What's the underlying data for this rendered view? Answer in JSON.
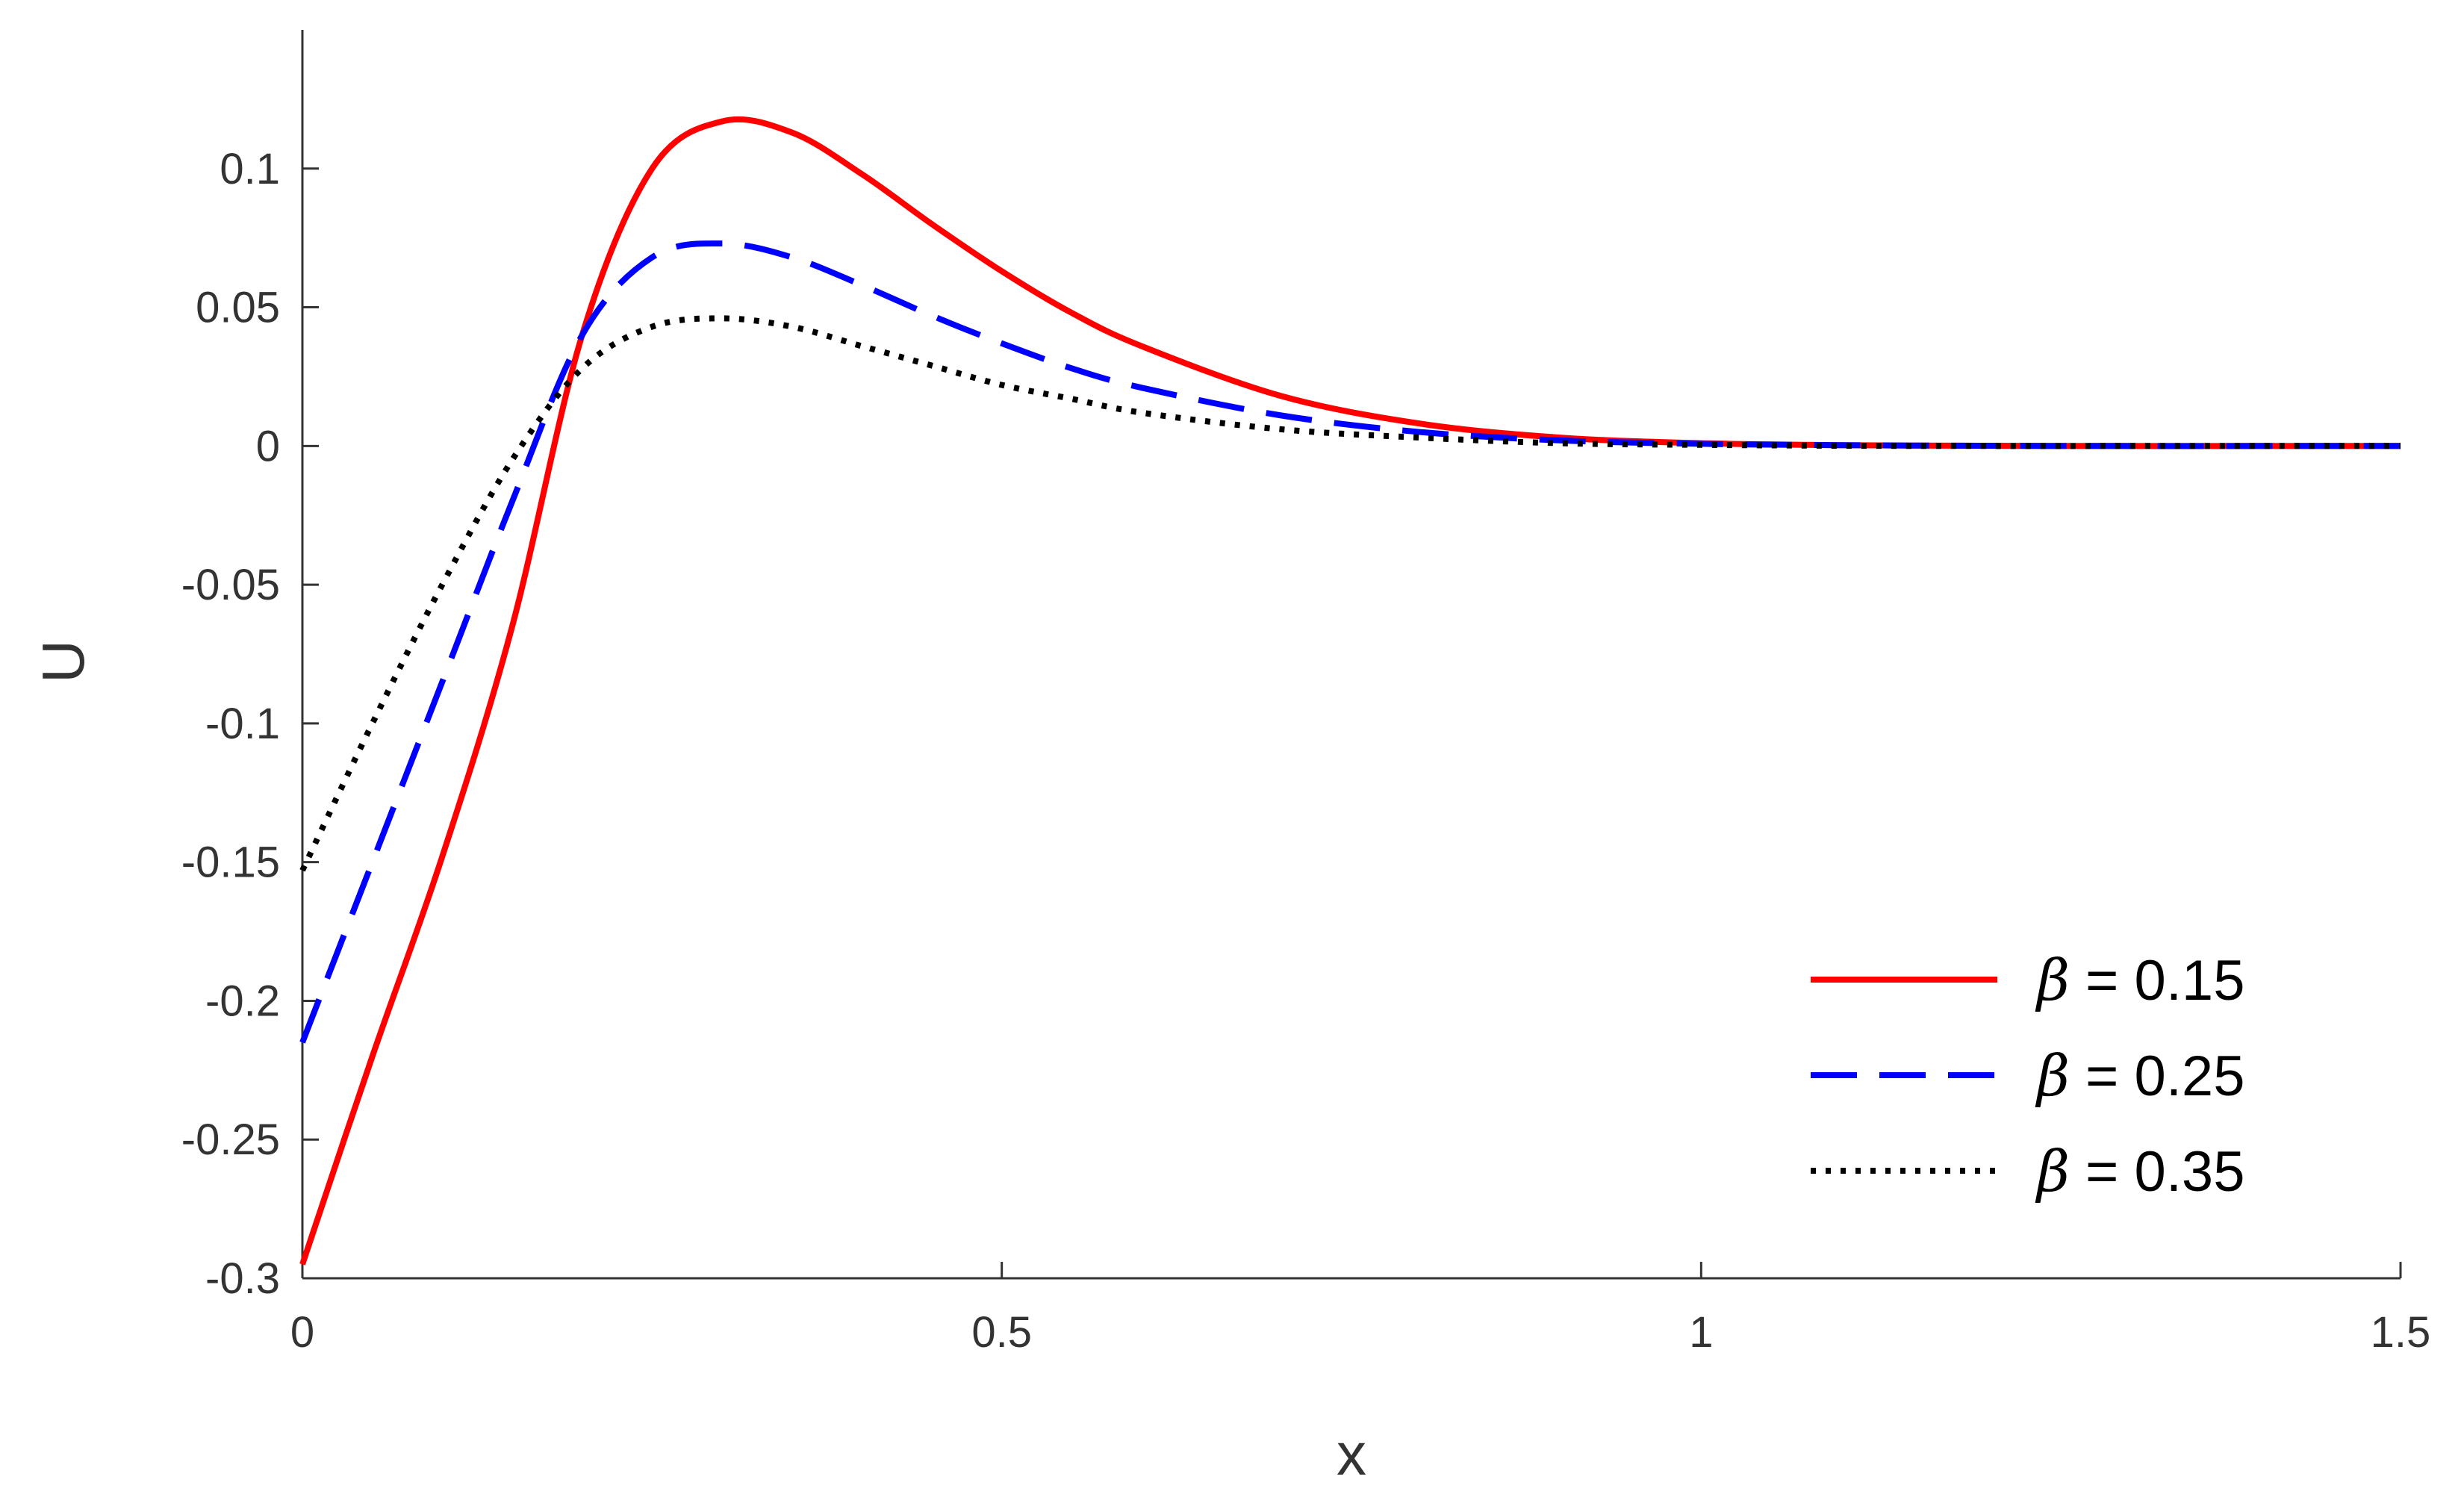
{
  "chart_data": {
    "type": "line",
    "xlabel": "x",
    "ylabel": "U",
    "xlim": [
      0,
      1.5
    ],
    "ylim": [
      -0.3,
      0.15
    ],
    "xticks": [
      {
        "value": 0,
        "label": "0"
      },
      {
        "value": 0.5,
        "label": "0.5"
      },
      {
        "value": 1,
        "label": "1"
      },
      {
        "value": 1.5,
        "label": "1.5"
      }
    ],
    "yticks": [
      {
        "value": 0.1,
        "label": "0.1"
      },
      {
        "value": 0.05,
        "label": "0.05"
      },
      {
        "value": 0,
        "label": "0"
      },
      {
        "value": -0.05,
        "label": "-0.05"
      },
      {
        "value": -0.1,
        "label": "-0.1"
      },
      {
        "value": -0.15,
        "label": "-0.15"
      },
      {
        "value": -0.2,
        "label": "-0.2"
      },
      {
        "value": -0.25,
        "label": "-0.25"
      },
      {
        "value": -0.3,
        "label": "-0.3"
      }
    ],
    "grid": false,
    "legend_position": "bottom-right",
    "series": [
      {
        "name": "β = 0.15",
        "legend_symbol": "β",
        "legend_text": " = 0.15",
        "color": "#ff0000",
        "style": "solid",
        "x": [
          0,
          0.05,
          0.1,
          0.15,
          0.2,
          0.25,
          0.3,
          0.35,
          0.4,
          0.45,
          0.5,
          0.55,
          0.6,
          0.7,
          0.8,
          0.9,
          1.0,
          1.1,
          1.2,
          1.3,
          1.4,
          1.5
        ],
        "y": [
          -0.295,
          -0.22,
          -0.148,
          -0.065,
          0.04,
          0.1,
          0.117,
          0.113,
          0.098,
          0.08,
          0.063,
          0.048,
          0.036,
          0.018,
          0.008,
          0.003,
          0.001,
          0.0003,
          0.0001,
          0,
          0,
          0
        ]
      },
      {
        "name": "β = 0.25",
        "legend_symbol": "β",
        "legend_text": " = 0.25",
        "color": "#0000ff",
        "style": "dashed",
        "x": [
          0,
          0.05,
          0.1,
          0.15,
          0.2,
          0.25,
          0.3,
          0.35,
          0.4,
          0.45,
          0.5,
          0.55,
          0.6,
          0.7,
          0.8,
          0.9,
          1.0,
          1.1,
          1.2,
          1.3,
          1.4,
          1.5
        ],
        "y": [
          -0.215,
          -0.15,
          -0.085,
          -0.02,
          0.04,
          0.068,
          0.073,
          0.068,
          0.058,
          0.047,
          0.037,
          0.028,
          0.021,
          0.011,
          0.005,
          0.002,
          0.0008,
          0.0003,
          0.0001,
          0,
          0,
          0
        ]
      },
      {
        "name": "β = 0.35",
        "legend_symbol": "β",
        "legend_text": " = 0.35",
        "color": "#000000",
        "style": "dotted",
        "x": [
          0,
          0.05,
          0.1,
          0.15,
          0.2,
          0.25,
          0.3,
          0.35,
          0.4,
          0.45,
          0.5,
          0.55,
          0.6,
          0.7,
          0.8,
          0.9,
          1.0,
          1.1,
          1.2,
          1.3,
          1.4,
          1.5
        ],
        "y": [
          -0.153,
          -0.1,
          -0.05,
          -0.005,
          0.028,
          0.043,
          0.046,
          0.043,
          0.036,
          0.029,
          0.022,
          0.017,
          0.012,
          0.006,
          0.003,
          0.001,
          0.0004,
          0.0001,
          0,
          0,
          0,
          0
        ]
      }
    ]
  }
}
